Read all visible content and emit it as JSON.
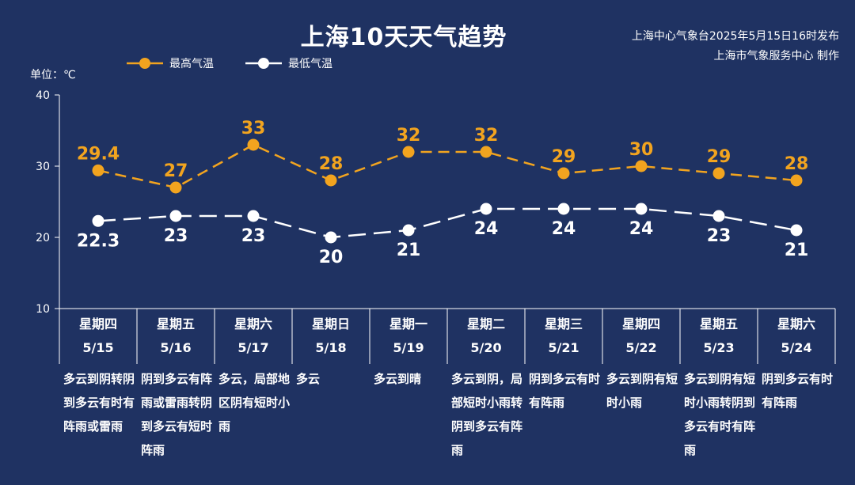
{
  "header": {
    "title": "上海10天天气趋势",
    "publisher_line1": "上海中心气象台2025年5月15日16时发布",
    "publisher_line2": "上海市气象服务中心 制作",
    "unit": "单位：℃"
  },
  "colors": {
    "background": "#1f3262",
    "high": "#f2a41f",
    "low": "#ffffff",
    "axis": "#ffffff"
  },
  "chart_data": {
    "type": "line",
    "title": "上海10天天气趋势",
    "ylabel": "单位：℃",
    "ylim": [
      10,
      40
    ],
    "yticks": [
      10,
      20,
      30,
      40
    ],
    "categories": [
      "5/15",
      "5/16",
      "5/17",
      "5/18",
      "5/19",
      "5/20",
      "5/21",
      "5/22",
      "5/23",
      "5/24"
    ],
    "weekdays": [
      "星期四",
      "星期五",
      "星期六",
      "星期日",
      "星期一",
      "星期二",
      "星期三",
      "星期四",
      "星期五",
      "星期六"
    ],
    "series": [
      {
        "name": "最高气温",
        "values": [
          29.4,
          27,
          33,
          28,
          32,
          32,
          29,
          30,
          29,
          28
        ],
        "labels": [
          "29.4",
          "27",
          "33",
          "28",
          "32",
          "32",
          "29",
          "30",
          "29",
          "28"
        ]
      },
      {
        "name": "最低气温",
        "values": [
          22.3,
          23,
          23,
          20,
          21,
          24,
          24,
          24,
          23,
          21
        ],
        "labels": [
          "22.3",
          "23",
          "23",
          "20",
          "21",
          "24",
          "24",
          "24",
          "23",
          "21"
        ]
      }
    ],
    "legend": "top-left"
  },
  "days": [
    {
      "weekday": "星期四",
      "date": "5/15",
      "weather": "多云到阴转阴到多云有时有阵雨或雷雨"
    },
    {
      "weekday": "星期五",
      "date": "5/16",
      "weather": "阴到多云有阵雨或雷雨转阴到多云有短时阵雨"
    },
    {
      "weekday": "星期六",
      "date": "5/17",
      "weather": "多云，局部地区阴有短时小雨"
    },
    {
      "weekday": "星期日",
      "date": "5/18",
      "weather": "多云"
    },
    {
      "weekday": "星期一",
      "date": "5/19",
      "weather": "多云到晴"
    },
    {
      "weekday": "星期二",
      "date": "5/20",
      "weather": "多云到阴，局部短时小雨转阴到多云有阵雨"
    },
    {
      "weekday": "星期三",
      "date": "5/21",
      "weather": "阴到多云有时有阵雨"
    },
    {
      "weekday": "星期四",
      "date": "5/22",
      "weather": "多云到阴有短时小雨"
    },
    {
      "weekday": "星期五",
      "date": "5/23",
      "weather": "多云到阴有短时小雨转阴到多云有时有阵雨"
    },
    {
      "weekday": "星期六",
      "date": "5/24",
      "weather": "阴到多云有时有阵雨"
    }
  ]
}
